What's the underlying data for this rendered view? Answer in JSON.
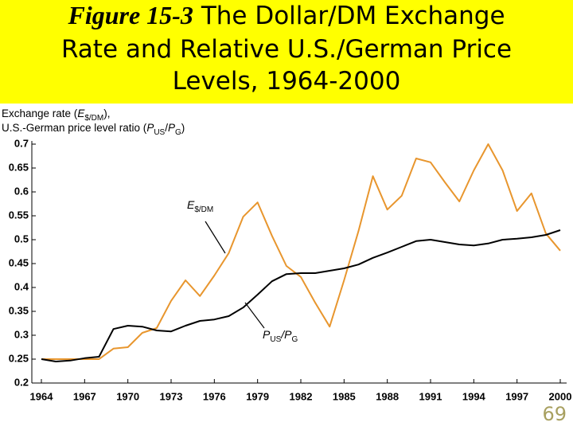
{
  "chart_data": {
    "type": "line",
    "figure_label": "Figure 15-3",
    "title_lines": [
      "The Dollar/DM Exchange",
      "Rate and Relative U.S./German Price",
      "Levels, 1964-2000"
    ],
    "y_label": [
      [
        "Exchange rate (",
        "E",
        "$/DM",
        "),"
      ],
      [
        "U.S.-German price level ratio (",
        "P",
        "US",
        "/",
        "P",
        "G",
        ")"
      ]
    ],
    "page_number": "69",
    "x": [
      1964,
      1965,
      1966,
      1967,
      1968,
      1969,
      1970,
      1971,
      1972,
      1973,
      1974,
      1975,
      1976,
      1977,
      1978,
      1979,
      1980,
      1981,
      1982,
      1983,
      1984,
      1985,
      1986,
      1987,
      1988,
      1989,
      1990,
      1991,
      1992,
      1993,
      1994,
      1995,
      1996,
      1997,
      1998,
      1999,
      2000
    ],
    "xlim": [
      1964,
      2000
    ],
    "xticks": [
      1964,
      1967,
      1970,
      1973,
      1976,
      1979,
      1982,
      1985,
      1988,
      1991,
      1994,
      1997,
      2000
    ],
    "ylim": [
      0.2,
      0.7
    ],
    "yticks": [
      0.2,
      0.25,
      0.3,
      0.35,
      0.4,
      0.45,
      0.5,
      0.55,
      0.6,
      0.65,
      0.7
    ],
    "series": [
      {
        "label": [
          "E",
          "$/DM"
        ],
        "color": "#e8962e",
        "values": [
          0.25,
          0.25,
          0.25,
          0.25,
          0.25,
          0.272,
          0.275,
          0.305,
          0.315,
          0.372,
          0.415,
          0.382,
          0.425,
          0.472,
          0.548,
          0.578,
          0.508,
          0.445,
          0.422,
          0.368,
          0.318,
          0.415,
          0.518,
          0.633,
          0.563,
          0.592,
          0.67,
          0.662,
          0.62,
          0.58,
          0.645,
          0.7,
          0.645,
          0.56,
          0.597,
          0.513,
          0.477
        ]
      },
      {
        "label": [
          "P",
          "US",
          "/",
          "P",
          "G"
        ],
        "color": "#000000",
        "values": [
          0.25,
          0.245,
          0.247,
          0.252,
          0.255,
          0.313,
          0.32,
          0.318,
          0.31,
          0.308,
          0.32,
          0.33,
          0.333,
          0.34,
          0.358,
          0.385,
          0.413,
          0.428,
          0.43,
          0.43,
          0.435,
          0.44,
          0.448,
          0.462,
          0.473,
          0.485,
          0.497,
          0.5,
          0.495,
          0.49,
          0.488,
          0.492,
          0.5,
          0.502,
          0.505,
          0.51,
          0.52
        ]
      }
    ]
  }
}
